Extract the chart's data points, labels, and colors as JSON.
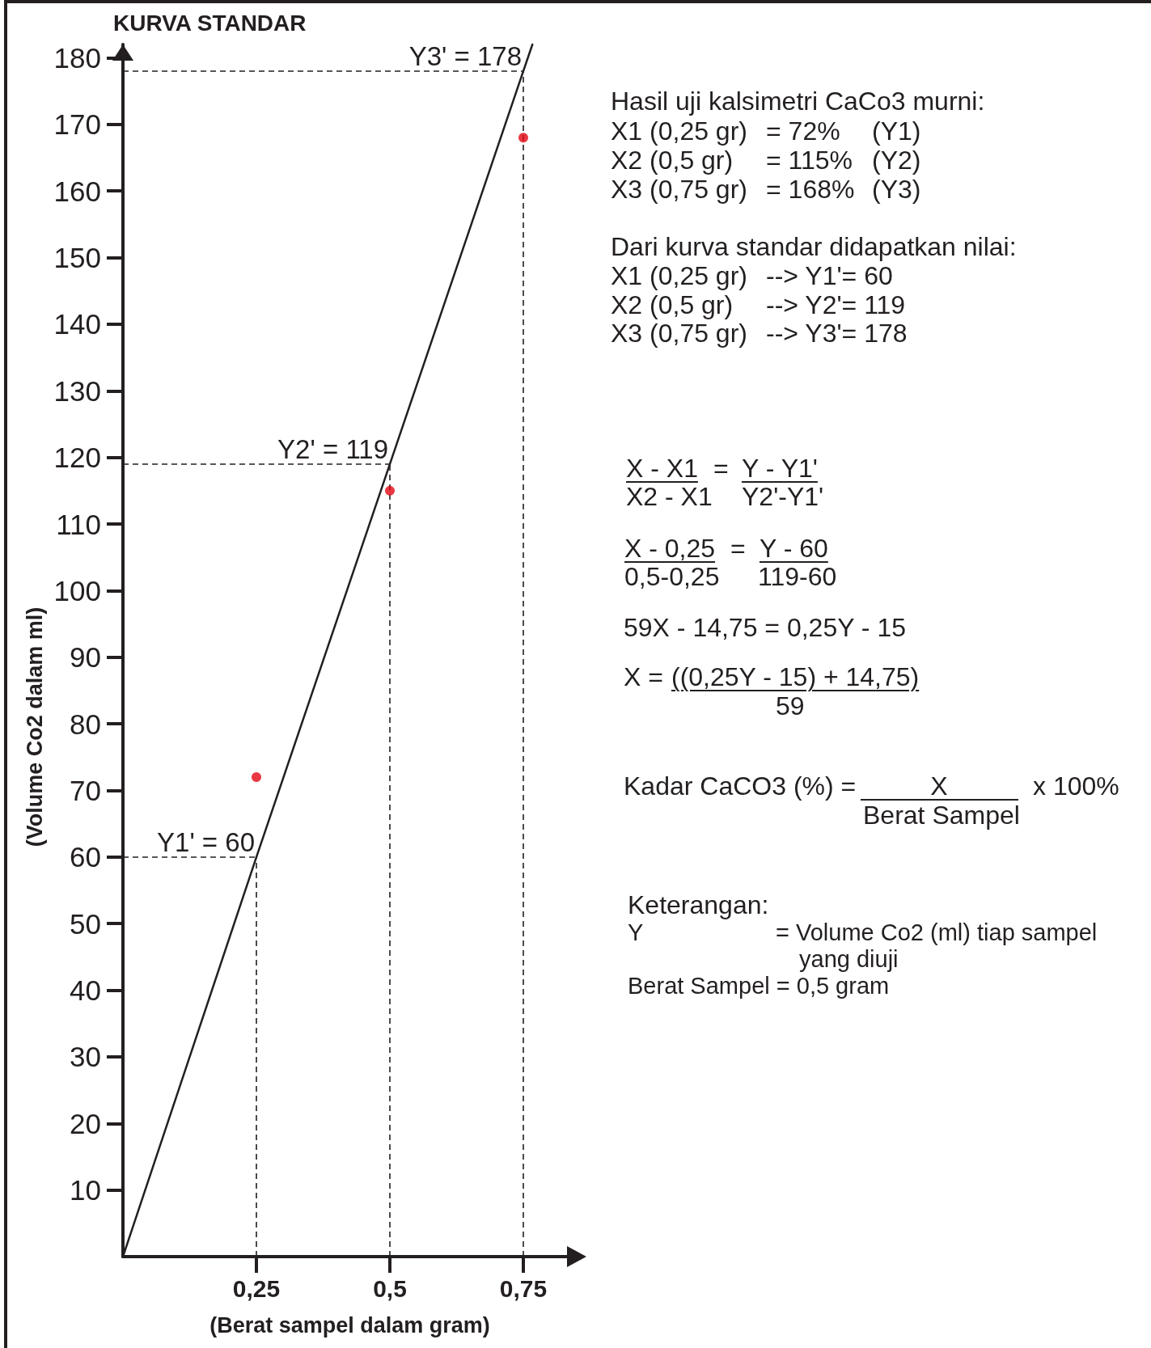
{
  "chart_data": {
    "type": "line",
    "title": "KURVA STANDAR",
    "xlabel": "(Berat sampel dalam gram)",
    "ylabel": "(Volume Co2 dalam ml)",
    "xlim": [
      0,
      0.85
    ],
    "ylim": [
      0,
      182
    ],
    "xticks": [
      {
        "value": 0.25,
        "label": "0,25"
      },
      {
        "value": 0.5,
        "label": "0,5"
      },
      {
        "value": 0.75,
        "label": "0,75"
      }
    ],
    "yticks": [
      10,
      20,
      30,
      40,
      50,
      60,
      70,
      80,
      90,
      100,
      110,
      120,
      130,
      140,
      150,
      160,
      170,
      180
    ],
    "series": [
      {
        "type": "line",
        "color": "#231f20",
        "marker": "none",
        "x": [
          0,
          0.25,
          0.5,
          0.75,
          0.767
        ],
        "values": [
          0,
          60,
          119,
          178,
          182
        ]
      },
      {
        "type": "scatter",
        "color": "#e30613",
        "marker": "circle",
        "x": [
          0.25,
          0.5,
          0.75
        ],
        "values": [
          72,
          115,
          168
        ]
      }
    ],
    "ref_lines": [
      {
        "axis": "y",
        "value": 178,
        "label": "Y3' = 178",
        "line_style": "dashed",
        "color": "#231f20"
      },
      {
        "axis": "y",
        "value": 119,
        "label": "Y2' = 119",
        "line_style": "dashed",
        "color": "#231f20"
      },
      {
        "axis": "y",
        "value": 60,
        "label": "Y1' = 60",
        "line_style": "dashed",
        "color": "#231f20"
      },
      {
        "axis": "x",
        "value": 0.75,
        "line_style": "dashed",
        "color": "#231f20"
      },
      {
        "axis": "x",
        "value": 0.5,
        "line_style": "dashed",
        "color": "#231f20"
      },
      {
        "axis": "x",
        "value": 0.25,
        "line_style": "dashed",
        "color": "#231f20"
      }
    ],
    "annotations": [
      "Hasil uji kalsimetri CaCo3 murni:",
      "X1 (0,25 gr)",
      "= 72%",
      "(Y1)",
      "X2 (0,5 gr)",
      "= 115%",
      "(Y2)",
      "X3 (0,75 gr)",
      "= 168%",
      "(Y3)",
      "Dari kurva standar didapatkan nilai:",
      "X1 (0,25 gr)",
      "--> Y1'= 60",
      "X2 (0,5 gr)",
      "--> Y2'= 119",
      "X3 (0,75 gr)",
      "--> Y3'= 178",
      "X - X1",
      "=",
      "Y - Y1'",
      "X2 - X1",
      "Y2'-Y1'",
      "X - 0,25",
      "=",
      "Y - 60",
      "0,5-0,25",
      "119-60",
      "59X - 14,75 = 0,25Y - 15",
      "X =",
      "((0,25Y - 15) + 14,75)",
      "59",
      "Kadar CaCO3 (%) =",
      "X",
      "Berat Sampel",
      "x 100%",
      "Keterangan:",
      "Y",
      "= Volume Co2 (ml) tiap sampel",
      "yang diuji",
      "Berat Sampel = 0,5 gram"
    ]
  }
}
